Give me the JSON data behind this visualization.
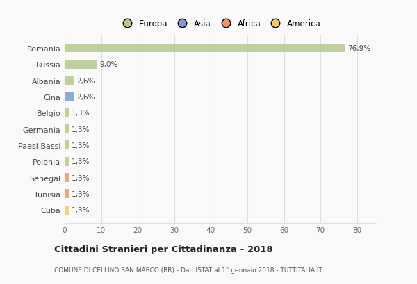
{
  "countries": [
    "Romania",
    "Russia",
    "Albania",
    "Cina",
    "Belgio",
    "Germania",
    "Paesi Bassi",
    "Polonia",
    "Senegal",
    "Tunisia",
    "Cuba"
  ],
  "values": [
    76.9,
    9.0,
    2.6,
    2.6,
    1.3,
    1.3,
    1.3,
    1.3,
    1.3,
    1.3,
    1.3
  ],
  "labels": [
    "76,9%",
    "9,0%",
    "2,6%",
    "2,6%",
    "1,3%",
    "1,3%",
    "1,3%",
    "1,3%",
    "1,3%",
    "1,3%",
    "1,3%"
  ],
  "colors": [
    "#b5c98e",
    "#b5c98e",
    "#b5c98e",
    "#7b9ec7",
    "#b5c98e",
    "#b5c98e",
    "#b5c98e",
    "#b5c98e",
    "#e8976a",
    "#e8976a",
    "#f0c96e"
  ],
  "legend_labels": [
    "Europa",
    "Asia",
    "Africa",
    "America"
  ],
  "legend_colors": [
    "#b5c98e",
    "#7b9ec7",
    "#e8976a",
    "#f0c96e"
  ],
  "title": "Cittadini Stranieri per Cittadinanza - 2018",
  "subtitle": "COMUNE DI CELLINO SAN MARCO (BR) - Dati ISTAT al 1° gennaio 2018 - TUTTITALIA.IT",
  "xlim": [
    0,
    85
  ],
  "xticks": [
    0,
    10,
    20,
    30,
    40,
    50,
    60,
    70,
    80
  ],
  "bg_color": "#f9f9f9",
  "grid_color": "#dddddd",
  "bar_height": 0.55
}
